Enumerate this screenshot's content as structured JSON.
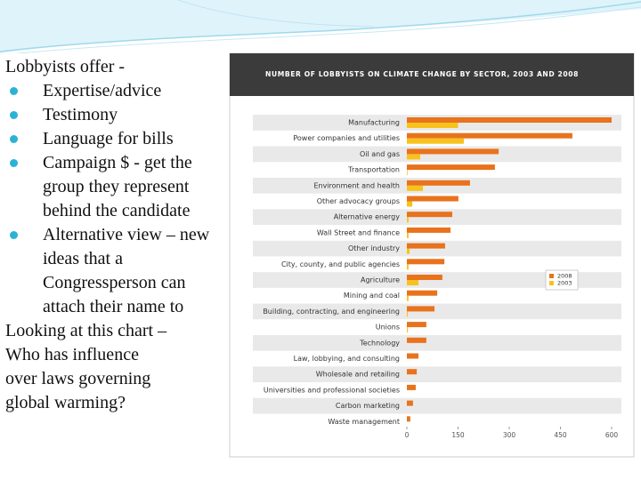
{
  "text": {
    "intro": "Lobbyists offer -",
    "bullets": [
      "Expertise/advice",
      "Testimony",
      "Language for bills",
      "Campaign $ - get the group they represent behind the candidate",
      "Alternative  view – new ideas that a Congressperson can attach their name to"
    ],
    "closing": [
      "Looking at this chart –",
      "Who has influence",
      "over laws governing",
      "global warming?"
    ]
  },
  "chart_data": {
    "type": "hbar",
    "title": "NUMBER OF LOBBYISTS ON CLIMATE CHANGE BY SECTOR, 2003 AND 2008",
    "categories": [
      "Manufacturing",
      "Power companies and utilities",
      "Oil and gas",
      "Transportation",
      "Environment and health",
      "Other advocacy groups",
      "Alternative energy",
      "Wall Street and finance",
      "Other industry",
      "City, county, and public agencies",
      "Agriculture",
      "Mining and coal",
      "Building, contracting, and engineering",
      "Unions",
      "Technology",
      "Law, lobbying, and consulting",
      "Wholesale and retailing",
      "Universities and professional societies",
      "Carbon marketing",
      "Waste management"
    ],
    "series": [
      {
        "name": "2008",
        "color": "#e8731c",
        "values": [
          600,
          485,
          269,
          258,
          185,
          151,
          133,
          128,
          112,
          110,
          104,
          89,
          81,
          57,
          57,
          34,
          29,
          26,
          18,
          10
        ]
      },
      {
        "name": "2003",
        "color": "#f7c21c",
        "values": [
          150,
          167,
          39,
          2,
          47,
          16,
          5,
          5,
          8,
          5,
          34,
          5,
          3,
          3,
          0,
          0,
          0,
          0,
          0,
          0
        ]
      }
    ],
    "xlim": [
      0,
      600
    ],
    "xticks": [
      0,
      150,
      300,
      450,
      600
    ],
    "grid": false
  }
}
